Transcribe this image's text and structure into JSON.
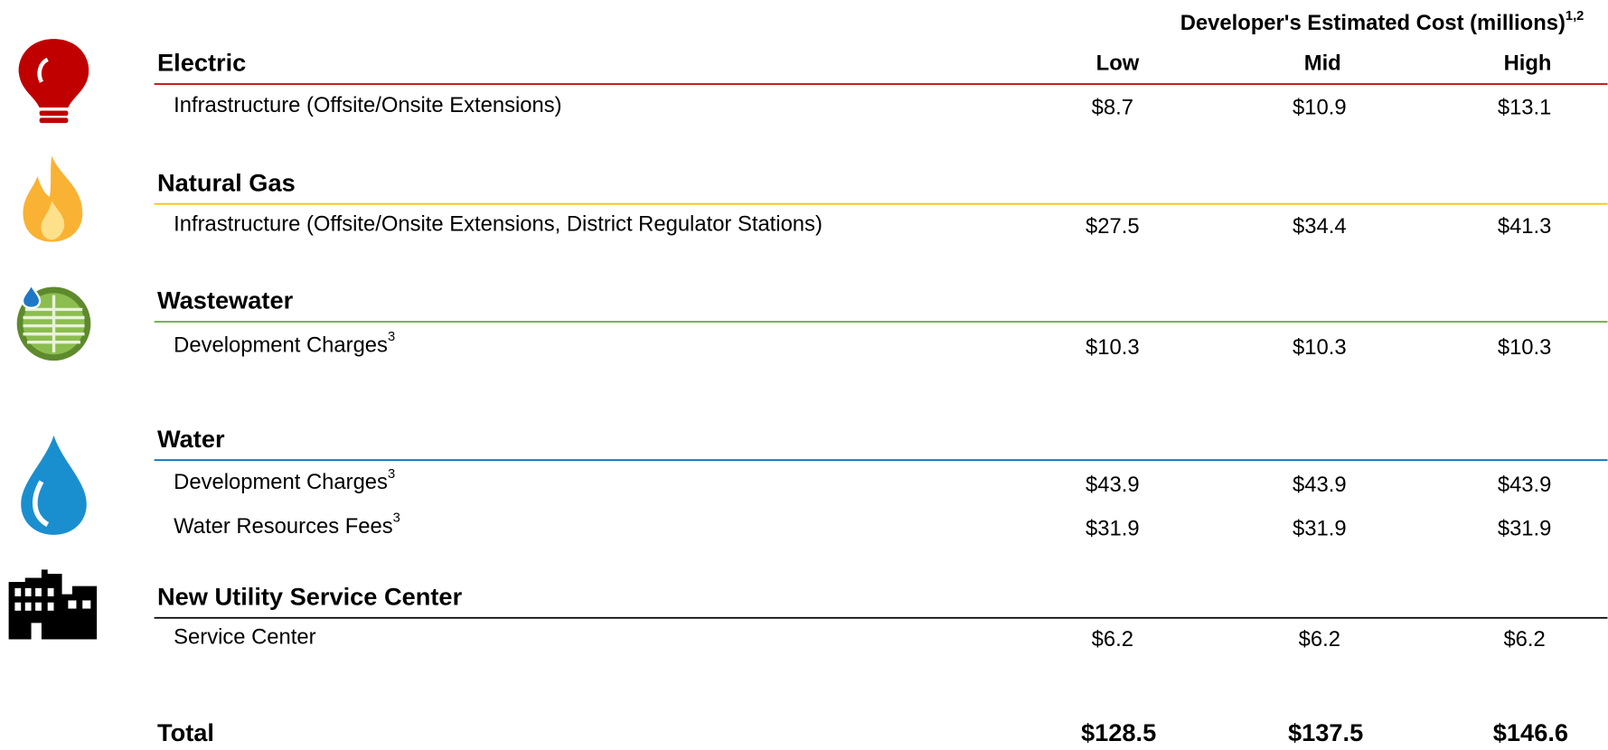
{
  "header": {
    "title": "Developer's Estimated Cost (millions)",
    "title_note": "1,2",
    "columns": [
      "Low",
      "Mid",
      "High"
    ]
  },
  "sections": [
    {
      "name": "Electric",
      "color": "#c00000",
      "rows": [
        {
          "label": "Infrastructure (Offsite/Onsite Extensions)",
          "values": [
            "$8.7",
            "$10.9",
            "$13.1"
          ]
        }
      ]
    },
    {
      "name": "Natural Gas",
      "color": "#ffc000",
      "rows": [
        {
          "label": "Infrastructure (Offsite/Onsite Extensions, District Regulator Stations)",
          "values": [
            "$27.5",
            "$34.4",
            "$41.3"
          ]
        }
      ]
    },
    {
      "name": "Wastewater",
      "color": "#70ad47",
      "rows": [
        {
          "label": "Development Charges",
          "note": "3",
          "values": [
            "$10.3",
            "$10.3",
            "$10.3"
          ]
        }
      ]
    },
    {
      "name": "Water",
      "color": "#0070c0",
      "rows": [
        {
          "label": "Development Charges",
          "note": "3",
          "values": [
            "$43.9",
            "$43.9",
            "$43.9"
          ]
        },
        {
          "label": "Water Resources Fees",
          "note": "3",
          "values": [
            "$31.9",
            "$31.9",
            "$31.9"
          ]
        }
      ]
    },
    {
      "name": "New Utility Service Center",
      "color": "#000000",
      "rows": [
        {
          "label": "Service Center",
          "values": [
            "$6.2",
            "$6.2",
            "$6.2"
          ]
        }
      ]
    }
  ],
  "total": {
    "label": "Total",
    "values": [
      "$128.5",
      "$137.5",
      "$146.6"
    ]
  }
}
